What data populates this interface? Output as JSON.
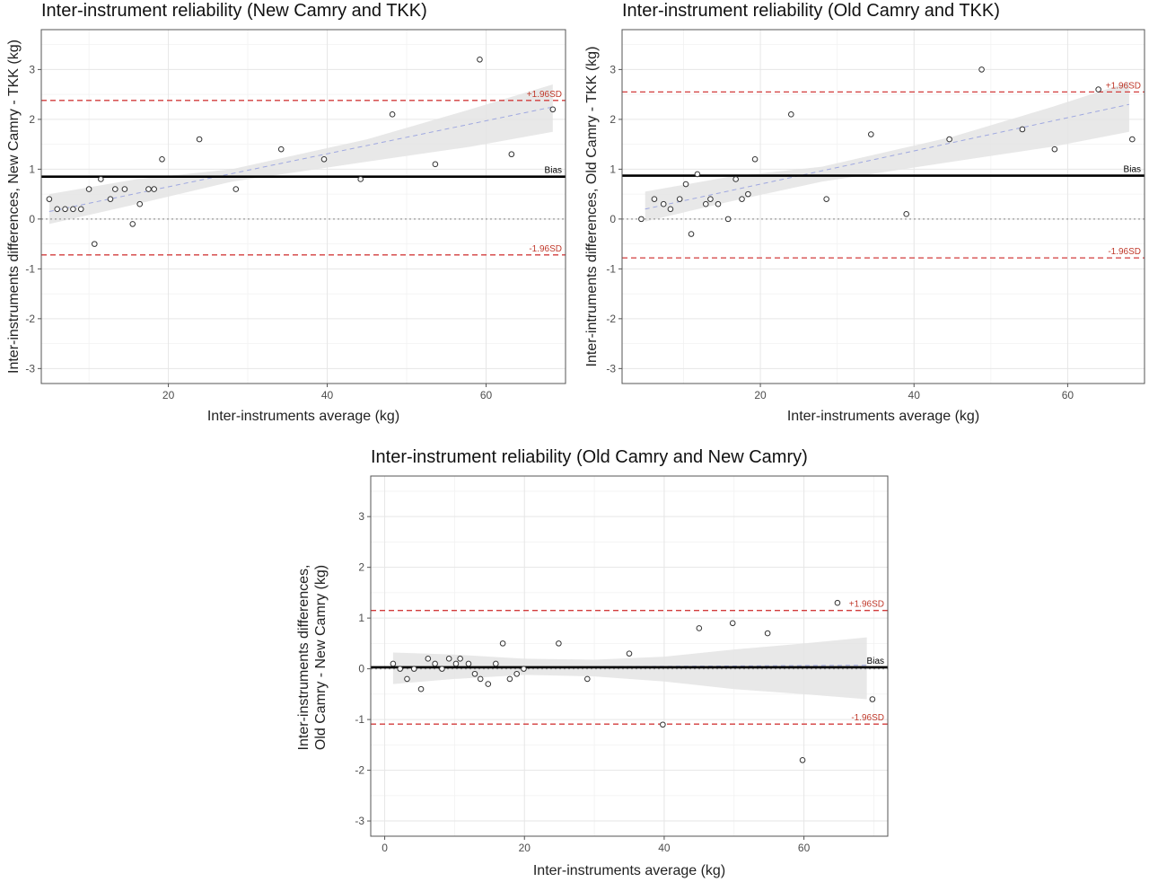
{
  "chart_data": [
    {
      "type": "scatter",
      "title": "Inter-instrument reliability (New Camry and TKK)",
      "xlabel": "Inter-instruments average (kg)",
      "ylabel_lines": [
        "Inter-instruments differences, New Camry - TKK (kg)"
      ],
      "xlim": [
        4,
        70
      ],
      "ylim": [
        -3.3,
        3.8
      ],
      "xticks": [
        20,
        40,
        60
      ],
      "yticks": [
        -3,
        -2,
        -1,
        0,
        1,
        2,
        3
      ],
      "grid": true,
      "points": [
        [
          5,
          0.4
        ],
        [
          6,
          0.2
        ],
        [
          7,
          0.2
        ],
        [
          8,
          0.2
        ],
        [
          9,
          0.2
        ],
        [
          10,
          0.6
        ],
        [
          10.7,
          -0.5
        ],
        [
          11.5,
          0.8
        ],
        [
          12.7,
          0.4
        ],
        [
          13.3,
          0.6
        ],
        [
          14.5,
          0.6
        ],
        [
          15.5,
          -0.1
        ],
        [
          16.4,
          0.3
        ],
        [
          17.5,
          0.6
        ],
        [
          18.2,
          0.6
        ],
        [
          19.2,
          1.2
        ],
        [
          23.9,
          1.6
        ],
        [
          28.5,
          0.6
        ],
        [
          34.2,
          1.4
        ],
        [
          39.6,
          1.2
        ],
        [
          44.2,
          0.8
        ],
        [
          48.2,
          2.1
        ],
        [
          53.6,
          1.1
        ],
        [
          59.2,
          3.2
        ],
        [
          63.2,
          1.3
        ],
        [
          68.4,
          2.2
        ]
      ],
      "bias": 0.85,
      "upper_loa": 2.38,
      "lower_loa": -0.72,
      "trend": {
        "x": [
          5,
          68.4
        ],
        "y": [
          0.15,
          2.25
        ]
      },
      "band": {
        "x": [
          5,
          16,
          28,
          45,
          58,
          68.4
        ],
        "lower": [
          -0.1,
          0.3,
          0.75,
          1.15,
          1.45,
          1.75
        ],
        "upper": [
          0.5,
          0.8,
          1.0,
          1.6,
          2.2,
          2.7
        ]
      },
      "bias_label": "Bias",
      "upper_label": "+1.96SD",
      "lower_label": "-1.96SD"
    },
    {
      "type": "scatter",
      "title": "Inter-instrument reliability (Old Camry and TKK)",
      "xlabel": "Inter-instruments average (kg)",
      "ylabel_lines": [
        "Inter-intruments differences, Old Camry - TKK (kg)"
      ],
      "xlim": [
        2,
        70
      ],
      "ylim": [
        -3.3,
        3.8
      ],
      "xticks": [
        20,
        40,
        60
      ],
      "yticks": [
        -3,
        -2,
        -1,
        0,
        1,
        2,
        3
      ],
      "grid": true,
      "points": [
        [
          4.5,
          0.0
        ],
        [
          6.2,
          0.4
        ],
        [
          7.4,
          0.3
        ],
        [
          8.3,
          0.2
        ],
        [
          9.5,
          0.4
        ],
        [
          10.3,
          0.7
        ],
        [
          11,
          -0.3
        ],
        [
          11.8,
          0.9
        ],
        [
          12.9,
          0.3
        ],
        [
          13.5,
          0.4
        ],
        [
          14.5,
          0.3
        ],
        [
          15.8,
          0.0
        ],
        [
          16.8,
          0.8
        ],
        [
          17.6,
          0.4
        ],
        [
          18.4,
          0.5
        ],
        [
          19.3,
          1.2
        ],
        [
          24,
          2.1
        ],
        [
          28.6,
          0.4
        ],
        [
          34.4,
          1.7
        ],
        [
          39,
          0.1
        ],
        [
          44.6,
          1.6
        ],
        [
          48.8,
          3.0
        ],
        [
          54.1,
          1.8
        ],
        [
          58.3,
          1.4
        ],
        [
          64,
          2.6
        ],
        [
          68.4,
          1.6
        ]
      ],
      "bias": 0.87,
      "upper_loa": 2.55,
      "lower_loa": -0.78,
      "trend": {
        "x": [
          5,
          68
        ],
        "y": [
          0.2,
          2.3
        ]
      },
      "band": {
        "x": [
          5,
          16,
          28,
          45,
          58,
          68
        ],
        "lower": [
          -0.05,
          0.35,
          0.75,
          1.15,
          1.45,
          1.75
        ],
        "upper": [
          0.55,
          0.85,
          1.05,
          1.65,
          2.25,
          2.75
        ]
      },
      "bias_label": "Bias",
      "upper_label": "+1.96SD",
      "lower_label": "-1.96SD"
    },
    {
      "type": "scatter",
      "title": "Inter-instrument reliability (Old Camry and New Camry)",
      "xlabel": "Inter-instruments average (kg)",
      "ylabel_lines": [
        "Inter-instruments differences,",
        "Old Camry - New Camry (kg)"
      ],
      "xlim": [
        -2,
        72
      ],
      "ylim": [
        -3.3,
        3.8
      ],
      "xticks": [
        0,
        20,
        40,
        60
      ],
      "yticks": [
        -3,
        -2,
        -1,
        0,
        1,
        2,
        3
      ],
      "grid": true,
      "points": [
        [
          1.2,
          0.1
        ],
        [
          2.2,
          0.0
        ],
        [
          3.2,
          -0.2
        ],
        [
          4.2,
          0.0
        ],
        [
          5.2,
          -0.4
        ],
        [
          6.2,
          0.2
        ],
        [
          7.2,
          0.1
        ],
        [
          8.2,
          0.0
        ],
        [
          9.2,
          0.2
        ],
        [
          10.2,
          0.1
        ],
        [
          10.8,
          0.2
        ],
        [
          12,
          0.1
        ],
        [
          12.9,
          -0.1
        ],
        [
          13.7,
          -0.2
        ],
        [
          14.8,
          -0.3
        ],
        [
          15.9,
          0.1
        ],
        [
          16.9,
          0.5
        ],
        [
          17.9,
          -0.2
        ],
        [
          18.9,
          -0.1
        ],
        [
          19.9,
          0.0
        ],
        [
          24.9,
          0.5
        ],
        [
          29,
          -0.2
        ],
        [
          35,
          0.3
        ],
        [
          39.8,
          -1.1
        ],
        [
          45,
          0.8
        ],
        [
          49.8,
          0.9
        ],
        [
          54.8,
          0.7
        ],
        [
          59.8,
          -1.8
        ],
        [
          64.8,
          1.3
        ],
        [
          69.8,
          -0.6
        ]
      ],
      "bias": 0.03,
      "upper_loa": 1.15,
      "lower_loa": -1.09,
      "trend": {
        "x": [
          1.2,
          69
        ],
        "y": [
          0.02,
          0.07
        ]
      },
      "band": {
        "x": [
          1.2,
          10,
          20,
          30,
          40,
          50,
          60,
          69
        ],
        "lower": [
          -0.3,
          -0.2,
          -0.12,
          -0.15,
          -0.25,
          -0.4,
          -0.5,
          -0.6
        ],
        "upper": [
          0.32,
          0.28,
          0.2,
          0.18,
          0.24,
          0.38,
          0.5,
          0.62
        ]
      },
      "bias_label": "Bias",
      "upper_label": "+1.96SD",
      "lower_label": "-1.96SD"
    }
  ]
}
